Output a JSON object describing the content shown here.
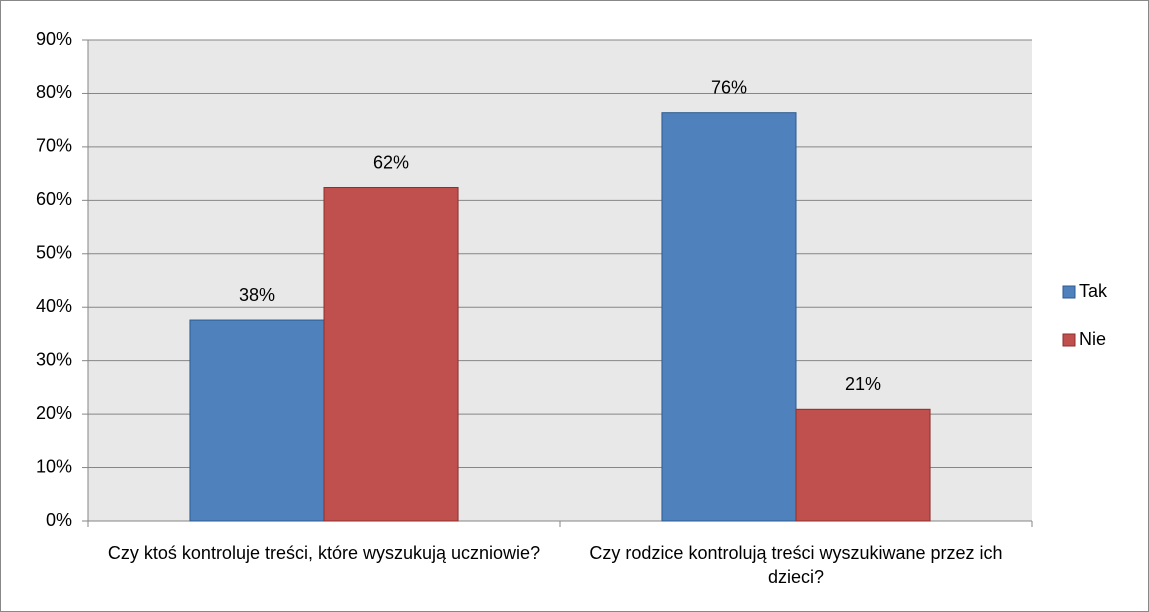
{
  "chart_data": {
    "type": "bar",
    "categories": [
      "Czy ktoś kontroluje treści, które wyszukują uczniowie?",
      "Czy rodzice kontrolują treści wyszukiwane przez ich dzieci?"
    ],
    "series": [
      {
        "name": "Tak",
        "color": "#4f81bd",
        "values": [
          37.6,
          76.4
        ],
        "value_labels": [
          "38%",
          "76%"
        ]
      },
      {
        "name": "Nie",
        "color": "#c0504d",
        "values": [
          62.4,
          20.9
        ],
        "value_labels": [
          "62%",
          "21%"
        ]
      }
    ],
    "ylim": [
      0,
      90
    ],
    "yticks": [
      {
        "value": 0,
        "label": "0%"
      },
      {
        "value": 10,
        "label": "10%"
      },
      {
        "value": 20,
        "label": "20%"
      },
      {
        "value": 30,
        "label": "30%"
      },
      {
        "value": 40,
        "label": "40%"
      },
      {
        "value": 50,
        "label": "50%"
      },
      {
        "value": 60,
        "label": "60%"
      },
      {
        "value": 70,
        "label": "70%"
      },
      {
        "value": 80,
        "label": "80%"
      },
      {
        "value": 90,
        "label": "90%"
      }
    ],
    "grid": true,
    "legend": "right"
  }
}
